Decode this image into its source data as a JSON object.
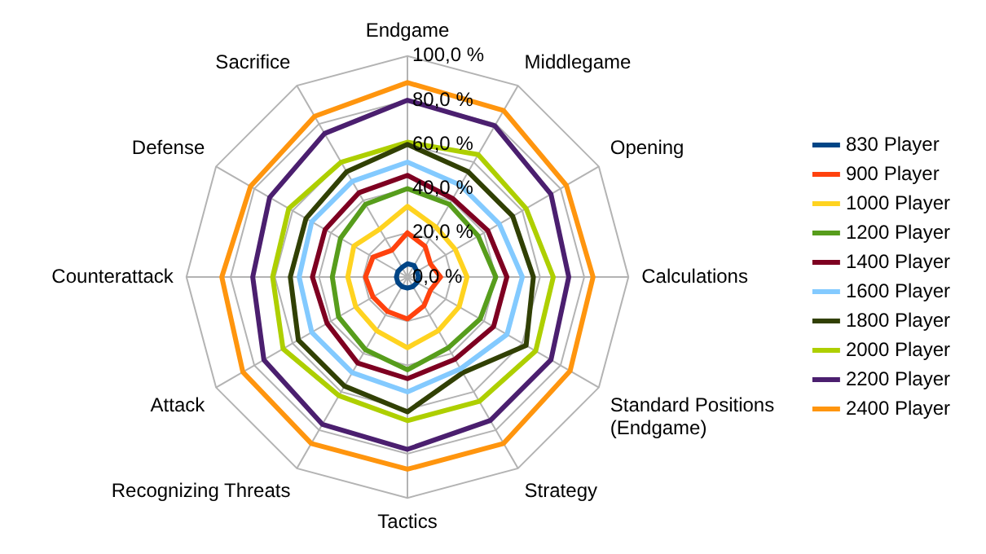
{
  "chart_data": {
    "type": "radar",
    "categories": [
      "Endgame",
      "Middlegame",
      "Opening",
      "Calculations",
      "Standard Positions (Endgame)",
      "Strategy",
      "Tactics",
      "Recognizing Threats",
      "Attack",
      "Counterattack",
      "Defense",
      "Sacrifice"
    ],
    "ylim": [
      0,
      100
    ],
    "yticks": [
      {
        "value": 0,
        "label": "0,0 %"
      },
      {
        "value": 20,
        "label": "20,0 %"
      },
      {
        "value": 40,
        "label": "40,0 %"
      },
      {
        "value": 60,
        "label": "60,0 %"
      },
      {
        "value": 80,
        "label": "80,0 %"
      },
      {
        "value": 100,
        "label": "100,0 %"
      }
    ],
    "grid": true,
    "legend": "right",
    "marker": "none",
    "line_style": "solid",
    "series": [
      {
        "name": "830 Player",
        "color": "#004586",
        "values": [
          6,
          6,
          5,
          5,
          5,
          5,
          5,
          5,
          5,
          5,
          5,
          5
        ]
      },
      {
        "name": "900 Player",
        "color": "#ff420e",
        "values": [
          20,
          16,
          12,
          15,
          12,
          15,
          19,
          18,
          18,
          19,
          18,
          14
        ]
      },
      {
        "name": "1000 Player",
        "color": "#ffd320",
        "values": [
          32,
          26,
          25,
          27,
          27,
          28,
          32,
          28,
          27,
          27,
          28,
          25
        ]
      },
      {
        "name": "1200 Player",
        "color": "#579d1c",
        "values": [
          40,
          38,
          37,
          40,
          38,
          37,
          42,
          38,
          36,
          34,
          35,
          38
        ]
      },
      {
        "name": "1400 Player",
        "color": "#7e0021",
        "values": [
          46,
          41,
          42,
          45,
          45,
          43,
          46,
          45,
          42,
          43,
          43,
          44
        ]
      },
      {
        "name": "1600 Player",
        "color": "#83caff",
        "values": [
          52,
          48,
          48,
          52,
          52,
          48,
          52,
          50,
          50,
          49,
          50,
          50
        ]
      },
      {
        "name": "1800 Player",
        "color": "#314004",
        "values": [
          60,
          55,
          55,
          57,
          62,
          50,
          61,
          57,
          57,
          53,
          53,
          55
        ]
      },
      {
        "name": "2000 Player",
        "color": "#aecf00",
        "values": [
          61,
          64,
          62,
          66,
          67,
          65,
          65,
          62,
          65,
          61,
          62,
          60
        ]
      },
      {
        "name": "2200 Player",
        "color": "#4b1f6f",
        "values": [
          80,
          79,
          75,
          73,
          75,
          75,
          78,
          77,
          75,
          70,
          72,
          75
        ]
      },
      {
        "name": "2400 Player",
        "color": "#ff950e",
        "values": [
          88,
          87,
          83,
          84,
          85,
          87,
          87,
          87,
          86,
          84,
          82,
          84
        ]
      }
    ]
  }
}
